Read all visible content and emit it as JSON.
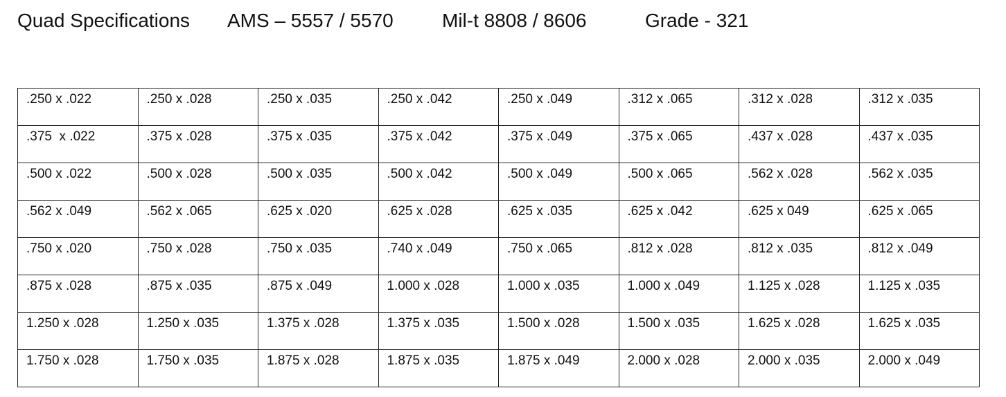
{
  "header": {
    "parts": [
      "Quad Specifications",
      "AMS – 5557 / 5570",
      "Mil-t 8808 / 8606",
      "Grade - 321"
    ]
  },
  "table": {
    "rows": [
      [
        ".250 x .022",
        ".250 x .028",
        ".250 x .035",
        ".250 x .042",
        ".250 x .049",
        ".312 x .065",
        ".312 x .028",
        ".312 x .035"
      ],
      [
        ".375  x .022",
        ".375 x .028",
        ".375 x .035",
        ".375 x .042",
        ".375 x .049",
        ".375 x .065",
        ".437 x .028",
        ".437 x .035"
      ],
      [
        ".500 x .022",
        ".500 x .028",
        ".500 x .035",
        ".500 x .042",
        ".500 x .049",
        ".500 x .065",
        ".562 x .028",
        ".562 x .035"
      ],
      [
        ".562 x .049",
        ".562 x .065",
        ".625 x .020",
        ".625 x .028",
        ".625 x .035",
        ".625 x .042",
        ".625 x 049",
        ".625 x .065"
      ],
      [
        ".750 x .020",
        ".750 x .028",
        ".750 x .035",
        ".740 x .049",
        ".750 x .065",
        ".812 x .028",
        ".812 x .035",
        ".812 x .049"
      ],
      [
        ".875 x .028",
        ".875 x .035",
        ".875 x .049",
        "1.000 x .028",
        "1.000 x .035",
        "1.000 x .049",
        "1.125 x .028",
        "1.125 x .035"
      ],
      [
        "1.250 x .028",
        "1.250 x .035",
        "1.375 x .028",
        "1.375 x .035",
        "1.500 x .028",
        "1.500 x .035",
        "1.625 x .028",
        "1.625 x .035"
      ],
      [
        "1.750 x .028",
        "1.750 x .035",
        "1.875 x .028",
        "1.875 x .035",
        "1.875 x .049",
        "2.000 x .028",
        "2.000 x .035",
        "2.000 x .049"
      ]
    ]
  }
}
